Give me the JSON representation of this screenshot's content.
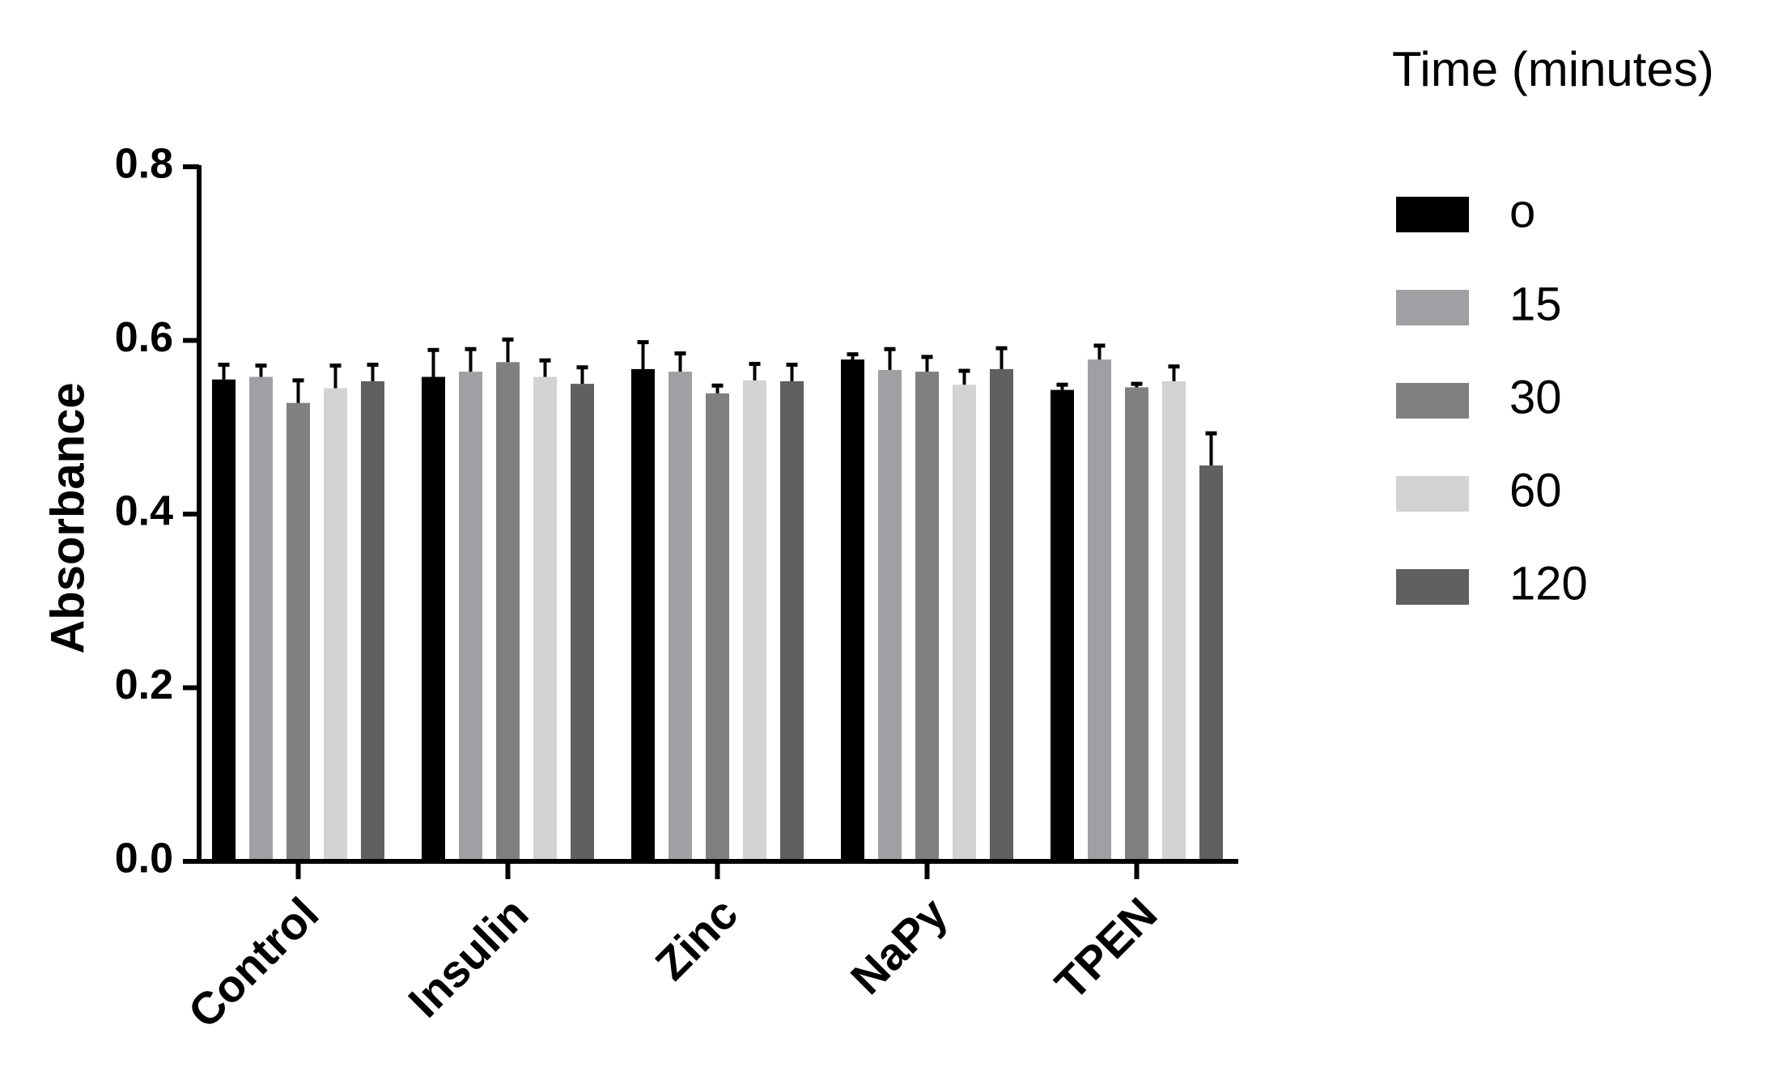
{
  "chart_data": {
    "type": "bar",
    "title": "",
    "xlabel": "",
    "ylabel": "Absorbance",
    "ylim": [
      0,
      0.8
    ],
    "yticks": [
      0.0,
      0.2,
      0.4,
      0.6,
      0.8
    ],
    "ytick_labels": [
      "0.0",
      "0.2",
      "0.4",
      "0.6",
      "0.8"
    ],
    "categories": [
      "Control",
      "Insulin",
      "Zinc",
      "NaPy",
      "TPEN"
    ],
    "legend_title": "Time (minutes)",
    "legend_position": "right",
    "grid": false,
    "series": [
      {
        "name": "o",
        "color": "#000000",
        "values": [
          0.555,
          0.558,
          0.567,
          0.578,
          0.543
        ],
        "errors": [
          0.017,
          0.031,
          0.031,
          0.006,
          0.006
        ]
      },
      {
        "name": "15",
        "color": "#a0a0a4",
        "values": [
          0.558,
          0.564,
          0.564,
          0.566,
          0.578
        ],
        "errors": [
          0.013,
          0.026,
          0.021,
          0.024,
          0.016
        ]
      },
      {
        "name": "30",
        "color": "#808080",
        "values": [
          0.528,
          0.575,
          0.539,
          0.564,
          0.546
        ],
        "errors": [
          0.026,
          0.026,
          0.009,
          0.017,
          0.004
        ]
      },
      {
        "name": "60",
        "color": "#d3d3d3",
        "values": [
          0.545,
          0.558,
          0.554,
          0.549,
          0.553
        ],
        "errors": [
          0.026,
          0.019,
          0.019,
          0.016,
          0.017
        ]
      },
      {
        "name": "120",
        "color": "#606060",
        "values": [
          0.553,
          0.55,
          0.553,
          0.567,
          0.456
        ],
        "errors": [
          0.019,
          0.019,
          0.019,
          0.024,
          0.037
        ]
      }
    ]
  }
}
